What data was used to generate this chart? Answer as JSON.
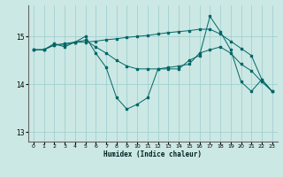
{
  "xlabel": "Humidex (Indice chaleur)",
  "background_color": "#cce8e4",
  "grid_color": "#99cccc",
  "line_color": "#006666",
  "xlim": [
    -0.5,
    23.5
  ],
  "ylim": [
    12.8,
    15.65
  ],
  "yticks": [
    13,
    14,
    15
  ],
  "xticks": [
    0,
    1,
    2,
    3,
    4,
    5,
    6,
    7,
    8,
    9,
    10,
    11,
    12,
    13,
    14,
    15,
    16,
    17,
    18,
    19,
    20,
    21,
    22,
    23
  ],
  "series": [
    {
      "x": [
        0,
        1,
        2,
        3,
        4,
        5,
        6,
        7,
        8,
        9,
        10,
        11,
        12,
        13,
        14,
        15,
        16,
        17,
        18,
        19,
        20,
        21,
        22,
        23
      ],
      "y": [
        14.72,
        14.72,
        14.82,
        14.85,
        14.88,
        14.88,
        14.9,
        14.93,
        14.95,
        14.98,
        15.0,
        15.02,
        15.05,
        15.08,
        15.1,
        15.12,
        15.15,
        15.15,
        15.05,
        14.9,
        14.75,
        14.6,
        14.1,
        13.85
      ]
    },
    {
      "x": [
        0,
        1,
        2,
        3,
        4,
        5,
        6,
        7,
        8,
        9,
        10,
        11,
        12,
        13,
        14,
        15,
        16,
        17,
        18,
        19,
        20,
        21,
        22,
        23
      ],
      "y": [
        14.72,
        14.72,
        14.82,
        14.82,
        14.88,
        14.92,
        14.78,
        14.65,
        14.5,
        14.38,
        14.32,
        14.32,
        14.32,
        14.35,
        14.38,
        14.42,
        14.65,
        14.72,
        14.78,
        14.65,
        14.42,
        14.28,
        14.05,
        13.85
      ]
    },
    {
      "x": [
        0,
        1,
        2,
        3,
        4,
        5,
        6,
        7,
        8,
        9,
        10,
        11,
        12,
        13,
        14,
        15,
        16,
        17,
        18,
        19,
        20,
        21,
        22,
        23
      ],
      "y": [
        14.72,
        14.72,
        14.85,
        14.78,
        14.88,
        15.0,
        14.65,
        14.35,
        13.72,
        13.48,
        13.58,
        13.72,
        14.32,
        14.32,
        14.32,
        14.5,
        14.6,
        15.42,
        15.1,
        14.72,
        14.05,
        13.85,
        14.1,
        13.85
      ]
    }
  ]
}
